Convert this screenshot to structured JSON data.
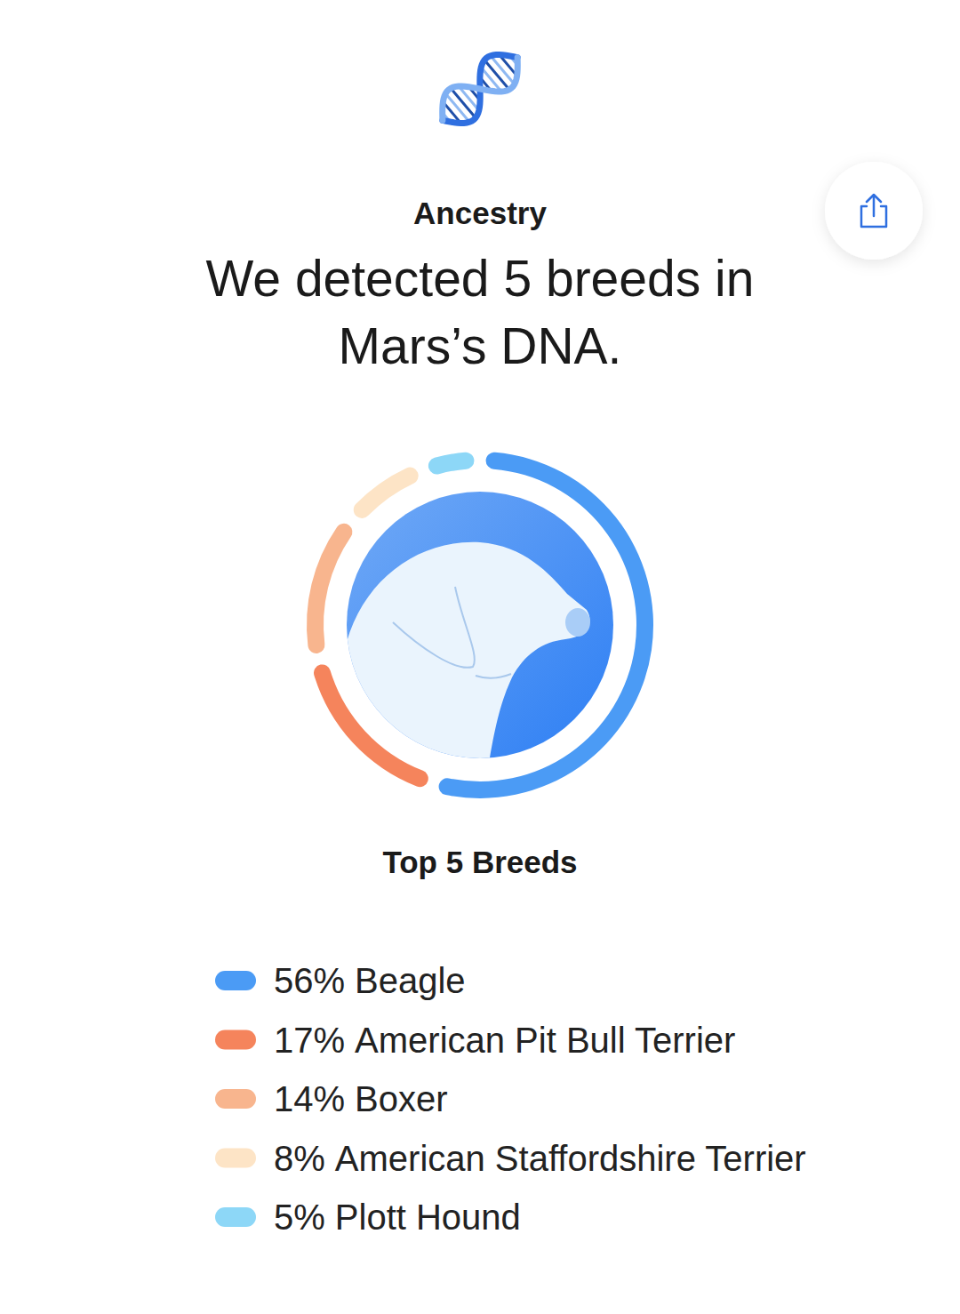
{
  "chart_data": {
    "type": "pie",
    "subtitle": "Ancestry",
    "title": "We detected 5 breeds in Mars’s DNA.",
    "legend_title": "Top 5 Breeds",
    "categories": [
      "Beagle",
      "American Pit Bull Terrier",
      "Boxer",
      "American Staffordshire Terrier",
      "Plott Hound"
    ],
    "values": [
      56,
      17,
      14,
      8,
      5
    ],
    "value_labels": [
      "56%",
      "17%",
      "14%",
      "8%",
      "5%"
    ],
    "colors": [
      "#4b9bf5",
      "#f5845c",
      "#f8b58e",
      "#fde4c6",
      "#8dd7f7"
    ],
    "legend": "bottom"
  }
}
